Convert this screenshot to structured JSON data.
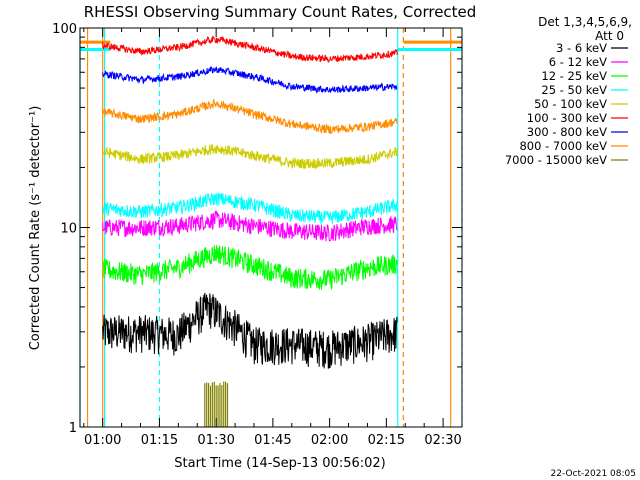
{
  "title": "RHESSI Observing Summary Count Rates, Corrected",
  "detector_label": "Det 1,3,4,5,6,9,",
  "attenuator_label": "Att 0",
  "footer_date": "22-Oct-2021 08:05",
  "colors": {
    "background": "#ffffff",
    "axis": "#000000",
    "cyan": "#00ffff",
    "orange": "#ff8c00"
  },
  "chart_data": {
    "type": "line",
    "title": "RHESSI Observing Summary Count Rates, Corrected",
    "xlabel": "Start Time (14-Sep-13 00:56:02)",
    "ylabel": "Corrected Count Rate (s⁻¹ detector⁻¹)",
    "y_scale": "log",
    "ylim": [
      1,
      100
    ],
    "xlim_minutes": [
      54.0,
      155.0
    ],
    "x_ticks": [
      {
        "minute": 60,
        "label": "01:00"
      },
      {
        "minute": 75,
        "label": "01:15"
      },
      {
        "minute": 90,
        "label": "01:30"
      },
      {
        "minute": 105,
        "label": "01:45"
      },
      {
        "minute": 120,
        "label": "02:00"
      },
      {
        "minute": 135,
        "label": "02:15"
      },
      {
        "minute": 150,
        "label": "02:30"
      }
    ],
    "y_ticks": [
      {
        "value": 1,
        "label": "1"
      },
      {
        "value": 10,
        "label": "10"
      },
      {
        "value": 100,
        "label": "100"
      }
    ],
    "legend_position": "right",
    "series": [
      {
        "name": "3 - 6 keV",
        "color": "#000000",
        "x": [
          60,
          70,
          80,
          88,
          92,
          100,
          110,
          120,
          130,
          138
        ],
        "y": [
          3.0,
          3.0,
          2.9,
          4.0,
          3.5,
          2.6,
          2.6,
          2.5,
          2.7,
          3.0
        ]
      },
      {
        "name": "6 - 12 keV",
        "color": "#ff00ff",
        "x": [
          60,
          70,
          80,
          90,
          100,
          110,
          120,
          130,
          138
        ],
        "y": [
          10.0,
          10.0,
          10.2,
          11.0,
          10.2,
          9.6,
          9.4,
          10.2,
          10.4
        ]
      },
      {
        "name": "12 - 25 keV",
        "color": "#00ff00",
        "x": [
          60,
          70,
          80,
          90,
          100,
          110,
          120,
          130,
          138
        ],
        "y": [
          6.2,
          5.8,
          6.3,
          7.5,
          6.5,
          5.6,
          5.5,
          6.3,
          6.6
        ]
      },
      {
        "name": "25 - 50 keV",
        "color": "#00ffff",
        "x": [
          60,
          70,
          80,
          90,
          100,
          110,
          120,
          130,
          138
        ],
        "y": [
          12.5,
          12.0,
          12.6,
          14.0,
          13.0,
          11.5,
          11.2,
          12.0,
          13.0
        ]
      },
      {
        "name": "50 - 100 keV",
        "color": "#cccc00",
        "x": [
          60,
          70,
          80,
          90,
          100,
          110,
          120,
          130,
          138
        ],
        "y": [
          24.0,
          22.0,
          23.0,
          25.0,
          23.0,
          21.0,
          21.0,
          22.0,
          24.0
        ]
      },
      {
        "name": "100 - 300 keV",
        "color": "#ff0000",
        "x": [
          60,
          70,
          80,
          90,
          100,
          110,
          120,
          130,
          138
        ],
        "y": [
          82.0,
          76.0,
          80.0,
          88.0,
          80.0,
          72.0,
          70.0,
          72.0,
          75.0
        ]
      },
      {
        "name": "300 - 800 keV",
        "color": "#0000ff",
        "x": [
          60,
          70,
          80,
          90,
          100,
          110,
          120,
          130,
          138
        ],
        "y": [
          59.0,
          55.0,
          57.0,
          62.0,
          57.0,
          51.0,
          49.0,
          50.0,
          51.0
        ]
      },
      {
        "name": "800 - 7000 keV",
        "color": "#ff8c00",
        "x": [
          60,
          70,
          80,
          90,
          100,
          110,
          120,
          130,
          138
        ],
        "y": [
          38.0,
          35.0,
          37.0,
          42.0,
          37.0,
          33.0,
          31.0,
          32.0,
          34.0
        ]
      },
      {
        "name": "7000 - 15000 keV",
        "color": "#808000",
        "x": [
          87,
          88,
          89,
          90,
          91,
          92,
          93
        ],
        "y": [
          1.0,
          1.6,
          1.0,
          1.6,
          1.0,
          1.6,
          1.0
        ]
      }
    ],
    "attenuator_markers": [
      {
        "color": "#00ffff",
        "x": [
          54.0,
          60.5,
          75.0,
          138.0,
          155.0
        ],
        "style": "solid-and-dashed"
      },
      {
        "color": "#ff8c00",
        "x": [
          56.0,
          60.0,
          139.5,
          152.0
        ],
        "style": "solid-and-dashed"
      }
    ],
    "orange_flag_level": 85.0,
    "cyan_flag_level": 78.0
  }
}
